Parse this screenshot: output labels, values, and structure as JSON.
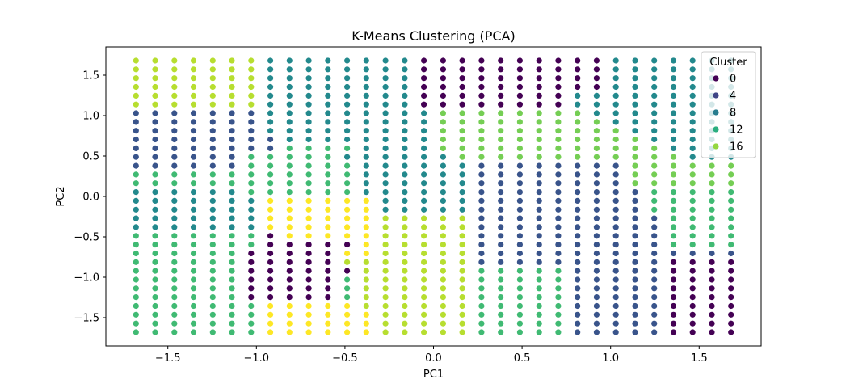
{
  "chart_data": {
    "type": "scatter",
    "title": "K-Means Clustering (PCA)",
    "xlabel": "PC1",
    "ylabel": "PC2",
    "xlim": [
      -1.85,
      1.85
    ],
    "ylim": [
      -1.85,
      1.85
    ],
    "xticks": [
      -1.5,
      -1.0,
      -0.5,
      0.0,
      0.5,
      1.0,
      1.5
    ],
    "xtick_labels": [
      "−1.5",
      "−1.0",
      "−0.5",
      "0.0",
      "0.5",
      "1.0",
      "1.5"
    ],
    "yticks": [
      -1.5,
      -1.0,
      -0.5,
      0.0,
      0.5,
      1.0,
      1.5
    ],
    "ytick_labels": [
      "−1.5",
      "−1.0",
      "−0.5",
      "0.0",
      "0.5",
      "1.0",
      "1.5"
    ],
    "grid": false,
    "grid_points": 32,
    "grid_range": [
      -1.68,
      1.68
    ],
    "colormap": "viridis",
    "cluster_range": [
      0,
      19
    ],
    "legend": {
      "title": "Cluster",
      "placement": "top-right",
      "entries": [
        {
          "label": "0",
          "cluster": 0
        },
        {
          "label": "4",
          "cluster": 4
        },
        {
          "label": "8",
          "cluster": 8
        },
        {
          "label": "12",
          "cluster": 12
        },
        {
          "label": "16",
          "cluster": 16
        }
      ]
    },
    "cluster_rows": [
      "TTTTTTTKKKKKKKK0000000000KKKKKKK",
      "TTTTTTTKKKKKKKK0000000000KKKKKKK",
      "TTTTTTTKKKKKKKK0000000000KKKKKKK",
      "TTTTTTTKKKKKKKK0000000000KKKKKKK",
      "TTTTTTTKKKKKKKK00000000KKKKKKKKK",
      "TTTTTTTKKKKKKKK00000000KKKKKKKKK",
      "5555555KKKKKKKKKSSSSSSSSKKKKKKKK",
      "5555555KKKKKKKKKSSSSSSSSSKKKKKKK",
      "5555555KKKKKKKKKSSSSSSSSSSKKKKKK",
      "55555555KKKKKKKKSSSSSSSSSSSKKKKK",
      "55555555NNNNKKKKSSSSSSSSSSSSKKKK",
      "555555NNNNNKKKKKKSSSSSSSSSSSSKKK",
      "555555NNNNNNKKKKKK55555555SSSSSS",
      "NNNNNNNNNNNNKKKKKK55555555SSSSSS",
      "NNNNNNNNNNNNKKKKKK55555555SSSSSS",
      "KKKKKKNNNNNNKKKKKK555555555NNNNN",
      "KKKKKKKYYYYYYKKKKK555555555NNNNN",
      "KKKKKKKYYYYYYKKKKK555555555NNNNN",
      "KKKKKKKYYYYYYTTTTT5555555555NNNN",
      "KKKKKKKYYYYYYTTTTT5555555555NNNN",
      "NNNNNNN0YYYYYTTTTT5555555555NNNN",
      "NNNNNNN00000YTTTTT5555555555NNNN",
      "NNNNNN00000YYTTTTT55555555555555",
      "NNNNNN00000TTTTTTT55555555550000",
      "NNNNNN000000TTTTTTNNNNN555550000",
      "NNNNNN00000NTTTTTTNNNNN555550000",
      "NNNNNN00000NTTTTTTNNNNN555550000",
      "NNNNNN00000NTTTTTTNNNNN555550000",
      "NNNNNNNYYYYYTTTTTTNNNNN555550000",
      "NNNNNNNYYYYYYTTTTTNNNNN555550000",
      "NNNNNNNYYYYYYTTTTTNNNNN555550000",
      "NNNNNNNYYYYYYTTTTTNNNNN555550000"
    ],
    "cluster_codes": {
      "0": 0,
      "5": 5,
      "K": 9,
      "N": 13,
      "S": 15,
      "T": 17,
      "Y": 19
    }
  }
}
